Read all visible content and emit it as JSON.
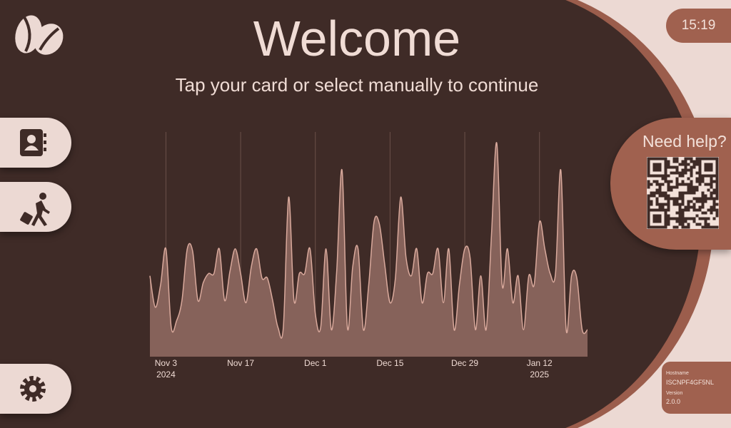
{
  "header": {
    "title": "Welcome",
    "subtitle": "Tap your card or select manually to continue"
  },
  "clock": "15:19",
  "help": {
    "title": "Need help?"
  },
  "info": {
    "hostname_label": "Hostname",
    "hostname": "ISCNPF4GF5NL",
    "version_label": "Version",
    "version": "2.0.0"
  },
  "chart_data": {
    "type": "area",
    "color": "#86625a",
    "line_color": "#d9a99c",
    "grid": true,
    "x": [
      "2024-10-31",
      "2024-11-01",
      "2024-11-02",
      "2024-11-03",
      "2024-11-04",
      "2024-11-05",
      "2024-11-06",
      "2024-11-07",
      "2024-11-08",
      "2024-11-09",
      "2024-11-10",
      "2024-11-11",
      "2024-11-12",
      "2024-11-13",
      "2024-11-14",
      "2024-11-15",
      "2024-11-16",
      "2024-11-17",
      "2024-11-18",
      "2024-11-19",
      "2024-11-20",
      "2024-11-21",
      "2024-11-22",
      "2024-11-23",
      "2024-11-24",
      "2024-11-25",
      "2024-11-26",
      "2024-11-27",
      "2024-11-28",
      "2024-11-29",
      "2024-11-30",
      "2024-12-01",
      "2024-12-02",
      "2024-12-03",
      "2024-12-04",
      "2024-12-05",
      "2024-12-06",
      "2024-12-07",
      "2024-12-08",
      "2024-12-09",
      "2024-12-10",
      "2024-12-11",
      "2024-12-12",
      "2024-12-13",
      "2024-12-14",
      "2024-12-15",
      "2024-12-16",
      "2024-12-17",
      "2024-12-18",
      "2024-12-19",
      "2024-12-20",
      "2024-12-21",
      "2024-12-22",
      "2024-12-23",
      "2024-12-24",
      "2024-12-25",
      "2024-12-26",
      "2024-12-27",
      "2024-12-28",
      "2024-12-29",
      "2024-12-30",
      "2024-12-31",
      "2025-01-01",
      "2025-01-02",
      "2025-01-03",
      "2025-01-04",
      "2025-01-05",
      "2025-01-06",
      "2025-01-07",
      "2025-01-08",
      "2025-01-09",
      "2025-01-10",
      "2025-01-11",
      "2025-01-12",
      "2025-01-13",
      "2025-01-14",
      "2025-01-15",
      "2025-01-16",
      "2025-01-17",
      "2025-01-18",
      "2025-01-19",
      "2025-01-20",
      "2025-01-21"
    ],
    "values": [
      36,
      22,
      32,
      48,
      13,
      16,
      25,
      48,
      47,
      25,
      33,
      37,
      37,
      48,
      25,
      38,
      48,
      37,
      24,
      40,
      48,
      35,
      35,
      25,
      13,
      13,
      71,
      25,
      37,
      37,
      48,
      19,
      13,
      48,
      12,
      38,
      83,
      13,
      40,
      48,
      12,
      32,
      60,
      59,
      41,
      24,
      35,
      71,
      44,
      36,
      48,
      24,
      37,
      37,
      48,
      24,
      48,
      12,
      32,
      48,
      44,
      12,
      36,
      12,
      54,
      95,
      32,
      48,
      24,
      36,
      12,
      36,
      32,
      60,
      48,
      37,
      37,
      83,
      12,
      36,
      35,
      12,
      12
    ],
    "xticks": [
      {
        "value": "2024-11-03",
        "label": "Nov 3\n2024"
      },
      {
        "value": "2024-11-17",
        "label": "Nov 17"
      },
      {
        "value": "2024-12-01",
        "label": "Dec 1"
      },
      {
        "value": "2024-12-15",
        "label": "Dec 15"
      },
      {
        "value": "2024-12-29",
        "label": "Dec 29"
      },
      {
        "value": "2025-01-12",
        "label": "Jan 12\n2025"
      }
    ]
  }
}
